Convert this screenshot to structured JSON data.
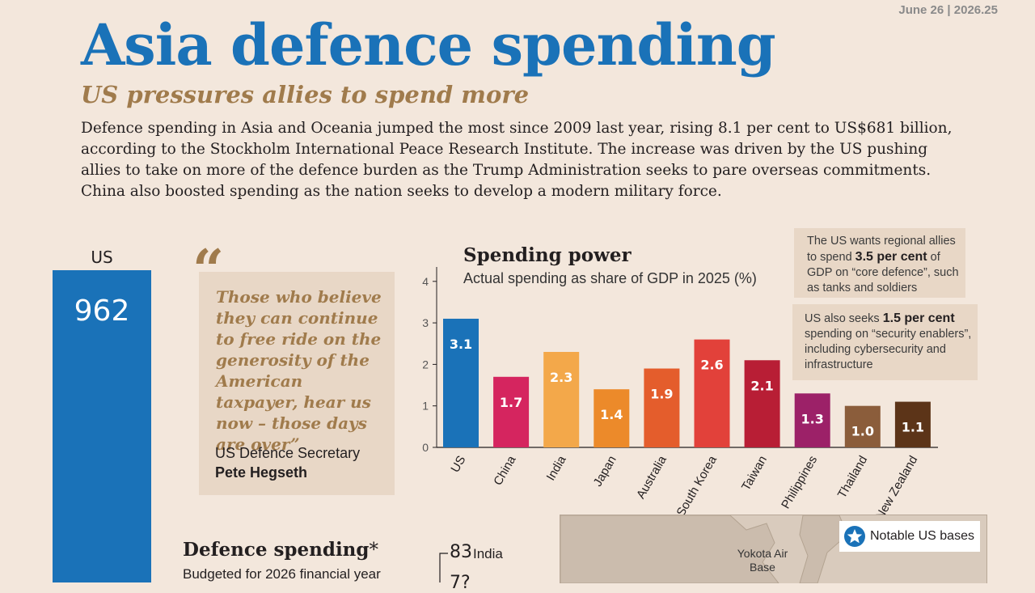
{
  "header": {
    "date": "June 26 | 2026.25",
    "title": "Asia defence spending",
    "subtitle": "US pressures allies to spend more",
    "intro": "Defence spending in Asia and Oceania jumped the most since 2009 last year, rising 8.1 per cent to US$681 billion, according to the Stockholm International Peace Research Institute. The increase was driven by the US pushing allies to take on more of the defence burden as the Trump Administration seeks to pare overseas commitments. China also boosted spending as the nation seeks to develop a modern military force."
  },
  "us_bar": {
    "label": "US",
    "value": "962"
  },
  "quote": {
    "mark": "“",
    "text": "Those who believe they can continue to free ride on the generosity of the American taxpayer, hear us now – those days are over”",
    "role": "US Defence Secretary",
    "name": "Pete Hegseth"
  },
  "chart_data": {
    "type": "bar",
    "title": "Spending power",
    "subtitle": "Actual spending as share of GDP in 2025 (%)",
    "categories": [
      "US",
      "China",
      "India",
      "Japan",
      "Australia",
      "South Korea",
      "Taiwan",
      "Philippines",
      "Thailand",
      "New Zealand"
    ],
    "values": [
      3.1,
      1.7,
      2.3,
      1.4,
      1.9,
      2.6,
      2.1,
      1.3,
      1.0,
      1.1
    ],
    "value_labels": [
      "3.1",
      "1.7",
      "2.3",
      "1.4",
      "1.9",
      "2.6",
      "2.1",
      "1.3",
      "1.0",
      "1.1"
    ],
    "colors": [
      "#1a72b8",
      "#d5255f",
      "#f3a84a",
      "#ec8a2a",
      "#e45d2c",
      "#e2413a",
      "#b81e35",
      "#9c2168",
      "#8b5d3b",
      "#5c3418"
    ],
    "yticks": [
      "0",
      "1",
      "2",
      "3",
      "4"
    ],
    "ylim": [
      0,
      4.4
    ],
    "grid": false,
    "legend": "none"
  },
  "notes": {
    "note1_pre": "The US wants regional allies to spend ",
    "note1_bold": "3.5 per cent",
    "note1_post": " of GDP on “core defence”, such as tanks and soldiers",
    "note2_pre": "US also seeks ",
    "note2_bold": "1.5 per cent",
    "note2_post": " spending on “security enablers”, including cybersecurity and infrastructure"
  },
  "defence_spending": {
    "title": "Defence spending",
    "asterisk": "*",
    "subtitle": "Budgeted for 2026 financial year",
    "first_value": "83",
    "first_label": "India",
    "second_value_partial": "7?"
  },
  "map": {
    "legend_label": "Notable US bases",
    "base_label": "Yokota Air Base"
  }
}
